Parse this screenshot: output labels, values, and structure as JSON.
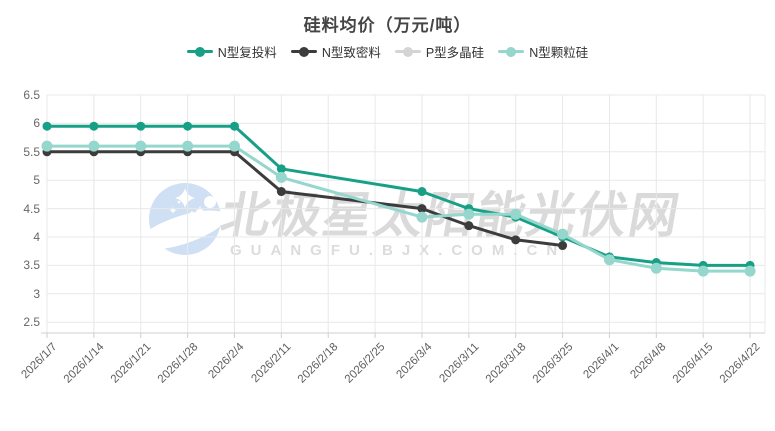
{
  "title": "硅料均价（万元/吨）",
  "watermark": {
    "cn_text": "北极星太阳能光伏网",
    "en_text": "GUANGFU.BJX.COM.CN",
    "logo_icon": "crescent-moon-stars-icon",
    "logo_color": "#cfe0f4",
    "text_color": "#dadada"
  },
  "colors": {
    "background": "#ffffff",
    "grid_line": "#e8e8e8",
    "axis_line": "#cfcfcf",
    "axis_text": "#676767",
    "title_text": "#454545",
    "legend_text": "#333333"
  },
  "chart_data": {
    "type": "line",
    "title": "硅料均价（万元/吨）",
    "xlabel": "",
    "ylabel": "",
    "ylim": [
      2.5,
      6.5
    ],
    "y_ticks": [
      6.5,
      6,
      5.5,
      5,
      4.5,
      4,
      3.5,
      3,
      2.5
    ],
    "grid": true,
    "legend_position": "top",
    "x_label_rotation": 45,
    "connect_nulls": true,
    "categories": [
      "2026/1/7",
      "2026/1/14",
      "2026/1/21",
      "2026/1/28",
      "2026/2/4",
      "2026/2/11",
      "2026/2/18",
      "2026/2/25",
      "2026/3/4",
      "2026/3/11",
      "2026/3/18",
      "2026/3/25",
      "2026/4/1",
      "2026/4/8",
      "2026/4/15",
      "2026/4/22"
    ],
    "series": [
      {
        "name": "N型复投料",
        "color": "#17a086",
        "values": [
          5.95,
          5.95,
          5.95,
          5.95,
          5.95,
          5.2,
          null,
          null,
          4.8,
          4.5,
          4.35,
          4.0,
          3.65,
          3.55,
          3.5,
          3.5
        ]
      },
      {
        "name": "N型致密料",
        "color": "#3c3c3c",
        "values": [
          5.5,
          5.5,
          5.5,
          5.5,
          5.5,
          4.8,
          null,
          null,
          4.5,
          4.2,
          3.95,
          3.85,
          null,
          null,
          null,
          null
        ]
      },
      {
        "name": "P型多晶硅",
        "color": "#d4d4d4",
        "values": [
          null,
          null,
          null,
          null,
          null,
          null,
          null,
          null,
          null,
          null,
          null,
          null,
          null,
          null,
          null,
          null
        ]
      },
      {
        "name": "N型颗粒硅",
        "color": "#95d6cd",
        "values": [
          5.6,
          5.6,
          5.6,
          5.6,
          5.6,
          5.05,
          null,
          null,
          4.35,
          4.4,
          4.4,
          4.05,
          3.6,
          3.45,
          3.4,
          3.4
        ]
      }
    ]
  }
}
